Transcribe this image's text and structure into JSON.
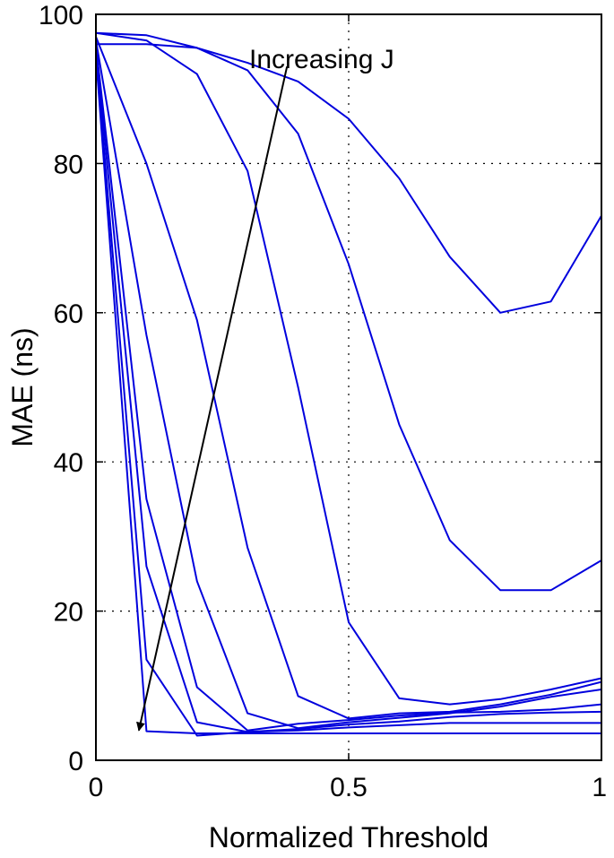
{
  "chart_data": {
    "type": "line",
    "title": "",
    "xlabel": "Normalized Threshold",
    "ylabel": "MAE (ns)",
    "xlim": [
      0,
      1
    ],
    "ylim": [
      0,
      100
    ],
    "xticks": [
      0,
      0.5,
      1
    ],
    "xtick_labels": [
      "0",
      "0.5",
      "1"
    ],
    "yticks": [
      0,
      20,
      40,
      60,
      80,
      100
    ],
    "ytick_labels": [
      "0",
      "20",
      "40",
      "60",
      "80",
      "100"
    ],
    "grid": true,
    "line_color": "#0000dd",
    "x": [
      0,
      0.1,
      0.2,
      0.3,
      0.4,
      0.5,
      0.6,
      0.7,
      0.8,
      0.9,
      1.0
    ],
    "series": [
      {
        "values": [
          96.0,
          96.0,
          95.5,
          93.5,
          91.0,
          86.0,
          78.0,
          67.5,
          60.0,
          61.5,
          73.0
        ]
      },
      {
        "values": [
          97.5,
          97.2,
          95.5,
          92.5,
          84.0,
          66.5,
          45.0,
          29.5,
          22.8,
          22.8,
          26.8
        ]
      },
      {
        "values": [
          97.5,
          96.5,
          92.0,
          79.0,
          50.0,
          18.5,
          8.3,
          7.5,
          8.2,
          9.5,
          11.0
        ]
      },
      {
        "values": [
          97.0,
          80.0,
          59.0,
          28.5,
          8.6,
          5.6,
          6.3,
          6.5,
          7.5,
          8.8,
          10.5
        ]
      },
      {
        "values": [
          96.5,
          57.0,
          24.0,
          6.3,
          4.3,
          5.1,
          5.7,
          6.3,
          7.2,
          8.5,
          9.5
        ]
      },
      {
        "values": [
          96.0,
          35.0,
          9.8,
          4.0,
          4.9,
          5.4,
          6.0,
          6.4,
          6.5,
          6.8,
          7.5
        ]
      },
      {
        "values": [
          95.5,
          26.0,
          5.1,
          3.8,
          4.2,
          4.8,
          5.2,
          5.8,
          6.2,
          6.4,
          6.5
        ]
      },
      {
        "values": [
          95.0,
          13.5,
          3.3,
          3.8,
          4.0,
          4.4,
          4.7,
          5.0,
          5.0,
          5.0,
          5.0
        ]
      },
      {
        "values": [
          94.5,
          3.9,
          3.6,
          3.6,
          3.6,
          3.6,
          3.6,
          3.6,
          3.6,
          3.6,
          3.6
        ]
      }
    ],
    "annotation": {
      "text": "Increasing J",
      "arrow_from": [
        0.378,
        93.0
      ],
      "arrow_to": [
        0.085,
        4.0
      ]
    }
  }
}
